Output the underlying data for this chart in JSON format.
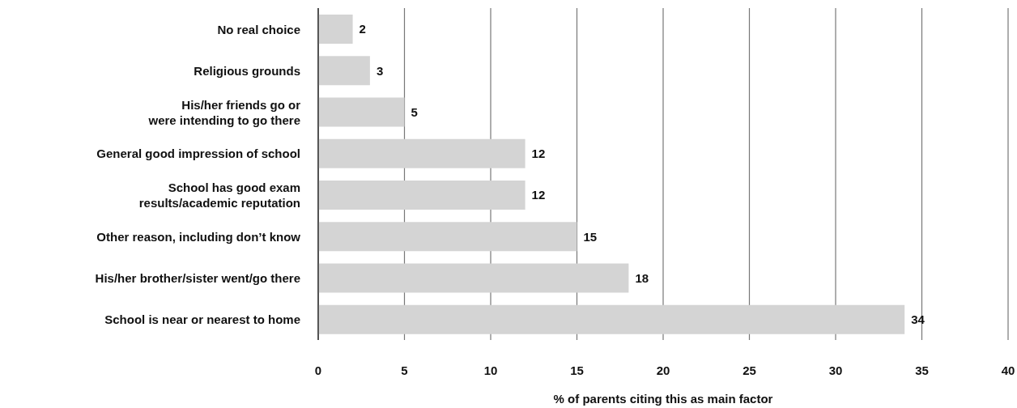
{
  "chart_data": {
    "type": "bar",
    "orientation": "horizontal",
    "xlabel": "% of parents citing this as main factor",
    "categories": [
      "No real choice",
      "Religious grounds",
      "His/her friends go or\nwere intending to go there",
      "General good impression of school",
      "School has good exam\nresults/academic reputation",
      "Other reason, including don’t know",
      "His/her brother/sister went/go there",
      "School is near or nearest to home"
    ],
    "values": [
      2,
      3,
      5,
      12,
      12,
      15,
      18,
      34
    ],
    "color": "#d4d4d4",
    "xlim": [
      0,
      40
    ],
    "xticks": [
      0,
      5,
      10,
      15,
      20,
      25,
      30,
      35,
      40
    ],
    "grid": "x",
    "data_labels": true,
    "legend": false
  }
}
